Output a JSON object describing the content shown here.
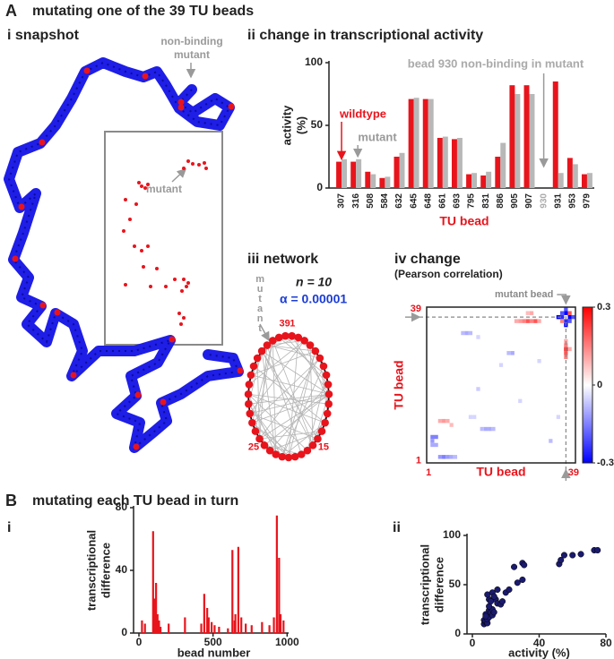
{
  "figure": {
    "A": {
      "label": "A",
      "title": "mutating one of the 39 TU beads"
    },
    "snapshot": {
      "title": "i  snapshot",
      "nonbinding": [
        "non-binding",
        "mutant"
      ],
      "inset_label": "mutant"
    },
    "network": {
      "title": "iii  network",
      "n": "n = 10",
      "alpha": "α = 0.00001",
      "mutant": "mutant",
      "nodes": [
        "1",
        "15",
        "25",
        "39"
      ]
    },
    "B": {
      "label": "B",
      "title": "mutating each TU bead in turn",
      "i": "i",
      "ii": "ii"
    }
  },
  "chart_data": [
    {
      "type": "bar",
      "title": "ii  change in transcriptional activity",
      "categories": [
        "307",
        "316",
        "508",
        "584",
        "632",
        "645",
        "648",
        "661",
        "693",
        "795",
        "831",
        "886",
        "905",
        "907",
        "930",
        "931",
        "953",
        "979"
      ],
      "series": [
        {
          "name": "wildtype",
          "color": "#e8141c",
          "values": [
            21,
            21,
            13,
            8,
            25,
            71,
            71,
            40,
            39,
            11,
            10,
            25,
            82,
            82,
            null,
            85,
            24,
            11
          ]
        },
        {
          "name": "mutant",
          "color": "#b8b8b8",
          "values": [
            23,
            23,
            11,
            9,
            28,
            72,
            71,
            41,
            40,
            12,
            13,
            36,
            75,
            75,
            null,
            12,
            19,
            12
          ]
        }
      ],
      "ylim": [
        0,
        100
      ],
      "yticks": [
        0,
        50,
        100
      ],
      "xlabel": "TU bead",
      "ylabel": [
        "activity",
        "(%)"
      ],
      "annotation": "bead 930 non-binding in mutant"
    },
    {
      "type": "heatmap",
      "title": "iv  change",
      "subtitle": "(Pearson correlation)",
      "xlabel": "TU bead",
      "ylabel": "TU bead",
      "xlim": [
        0.5,
        39.5
      ],
      "ylim": [
        0.5,
        39.5
      ],
      "xticks": [
        1,
        39
      ],
      "yticks": [
        1,
        39
      ],
      "clim": [
        -0.3,
        0.3
      ],
      "cticks": [
        0.3,
        0,
        -0.3
      ],
      "colors": [
        "#0000ff",
        "#ffffff",
        "#ff0000"
      ],
      "annotation": "mutant bead",
      "marker": 37,
      "cells": [
        {
          "x": 35,
          "y": 37,
          "value": -0.3
        },
        {
          "x": 36,
          "y": 37,
          "value": -0.25
        },
        {
          "x": 38,
          "y": 37,
          "value": -0.3
        },
        {
          "x": 39,
          "y": 37,
          "value": -0.2
        },
        {
          "x": 37,
          "y": 35,
          "value": -0.3
        },
        {
          "x": 37,
          "y": 36,
          "value": -0.25
        },
        {
          "x": 37,
          "y": 38,
          "value": -0.3
        },
        {
          "x": 37,
          "y": 39,
          "value": -0.2
        },
        {
          "x": 36,
          "y": 38,
          "value": -0.2
        },
        {
          "x": 38,
          "y": 36,
          "value": -0.2
        },
        {
          "x": 38,
          "y": 38,
          "value": 0.2
        },
        {
          "x": 36,
          "y": 36,
          "value": 0.15
        },
        {
          "x": 24,
          "y": 36,
          "value": 0.1
        },
        {
          "x": 25,
          "y": 36,
          "value": 0.12
        },
        {
          "x": 26,
          "y": 36,
          "value": 0.15
        },
        {
          "x": 27,
          "y": 36,
          "value": 0.2
        },
        {
          "x": 28,
          "y": 36,
          "value": 0.15
        },
        {
          "x": 29,
          "y": 36,
          "value": 0.2
        },
        {
          "x": 30,
          "y": 36,
          "value": 0.1
        },
        {
          "x": 27,
          "y": 38,
          "value": 0.08
        },
        {
          "x": 28,
          "y": 38,
          "value": 0.1
        },
        {
          "x": 37,
          "y": 27,
          "value": 0.15
        },
        {
          "x": 37,
          "y": 28,
          "value": 0.2
        },
        {
          "x": 37,
          "y": 29,
          "value": 0.25
        },
        {
          "x": 37,
          "y": 30,
          "value": 0.15
        },
        {
          "x": 37,
          "y": 31,
          "value": 0.1
        },
        {
          "x": 38,
          "y": 29,
          "value": 0.1
        },
        {
          "x": 10,
          "y": 33,
          "value": -0.08
        },
        {
          "x": 11,
          "y": 33,
          "value": -0.1
        },
        {
          "x": 12,
          "y": 33,
          "value": -0.08
        },
        {
          "x": 14,
          "y": 32,
          "value": -0.05
        },
        {
          "x": 22,
          "y": 28,
          "value": -0.08
        },
        {
          "x": 23,
          "y": 28,
          "value": -0.1
        },
        {
          "x": 30,
          "y": 26,
          "value": -0.05
        },
        {
          "x": 20,
          "y": 25,
          "value": -0.05
        },
        {
          "x": 14,
          "y": 19,
          "value": -0.06
        },
        {
          "x": 25,
          "y": 16,
          "value": -0.05
        },
        {
          "x": 35,
          "y": 12,
          "value": -0.05
        },
        {
          "x": 33,
          "y": 6,
          "value": -0.08
        },
        {
          "x": 2,
          "y": 7,
          "value": -0.15
        },
        {
          "x": 3,
          "y": 7,
          "value": -0.15
        },
        {
          "x": 2,
          "y": 6,
          "value": -0.12
        },
        {
          "x": 2,
          "y": 5,
          "value": -0.1
        },
        {
          "x": 3,
          "y": 5,
          "value": -0.1
        },
        {
          "x": 4,
          "y": 2,
          "value": -0.12
        },
        {
          "x": 5,
          "y": 2,
          "value": -0.15
        },
        {
          "x": 6,
          "y": 2,
          "value": -0.12
        },
        {
          "x": 7,
          "y": 2,
          "value": -0.1
        },
        {
          "x": 8,
          "y": 2,
          "value": -0.08
        },
        {
          "x": 4,
          "y": 11,
          "value": 0.1
        },
        {
          "x": 5,
          "y": 11,
          "value": 0.12
        },
        {
          "x": 6,
          "y": 11,
          "value": 0.1
        },
        {
          "x": 7,
          "y": 10,
          "value": 0.08
        },
        {
          "x": 15,
          "y": 9,
          "value": -0.08
        },
        {
          "x": 16,
          "y": 9,
          "value": -0.1
        },
        {
          "x": 17,
          "y": 9,
          "value": -0.1
        },
        {
          "x": 18,
          "y": 9,
          "value": -0.08
        },
        {
          "x": 12,
          "y": 12,
          "value": -0.05
        },
        {
          "x": 13,
          "y": 12,
          "value": -0.05
        }
      ]
    },
    {
      "type": "bar",
      "color": "#e8141c",
      "x": [
        20,
        40,
        95,
        105,
        115,
        125,
        135,
        145,
        200,
        310,
        420,
        440,
        460,
        470,
        490,
        510,
        540,
        600,
        630,
        645,
        650,
        670,
        690,
        720,
        760,
        830,
        880,
        910,
        930,
        945,
        955,
        975
      ],
      "values": [
        8,
        6,
        65,
        22,
        32,
        12,
        8,
        4,
        6,
        10,
        6,
        25,
        16,
        10,
        7,
        5,
        4,
        3,
        53,
        8,
        12,
        55,
        10,
        6,
        5,
        7,
        5,
        10,
        75,
        48,
        12,
        8
      ],
      "xlim": [
        0,
        1010
      ],
      "xticks": [
        0,
        500,
        1000
      ],
      "ylim": [
        0,
        80
      ],
      "yticks": [
        0,
        40,
        80
      ],
      "xlabel": "bead number",
      "ylabel": [
        "transcriptional",
        "difference"
      ]
    },
    {
      "type": "scatter",
      "color": "#1a1a6e",
      "x": [
        7,
        8,
        7,
        8,
        9,
        9,
        10,
        8,
        10,
        11,
        12,
        12,
        13,
        10,
        14,
        15,
        9,
        12,
        17,
        15,
        20,
        22,
        27,
        30,
        25,
        30,
        31,
        52,
        53,
        55,
        60,
        65,
        73,
        75,
        10,
        11,
        13,
        18,
        8
      ],
      "values": [
        10,
        12,
        14,
        13,
        11,
        15,
        17,
        20,
        24,
        22,
        25,
        19,
        22,
        35,
        35,
        31,
        40,
        42,
        30,
        45,
        42,
        45,
        52,
        55,
        68,
        72,
        70,
        71,
        75,
        80,
        80,
        81,
        85,
        85,
        28,
        33,
        38,
        33,
        18
      ],
      "xlim": [
        0,
        80
      ],
      "xticks": [
        0,
        40,
        80
      ],
      "ylim": [
        0,
        100
      ],
      "yticks": [
        0,
        50,
        100
      ],
      "xlabel": "activity (%)",
      "ylabel": [
        "transcriptional",
        "difference"
      ]
    }
  ]
}
